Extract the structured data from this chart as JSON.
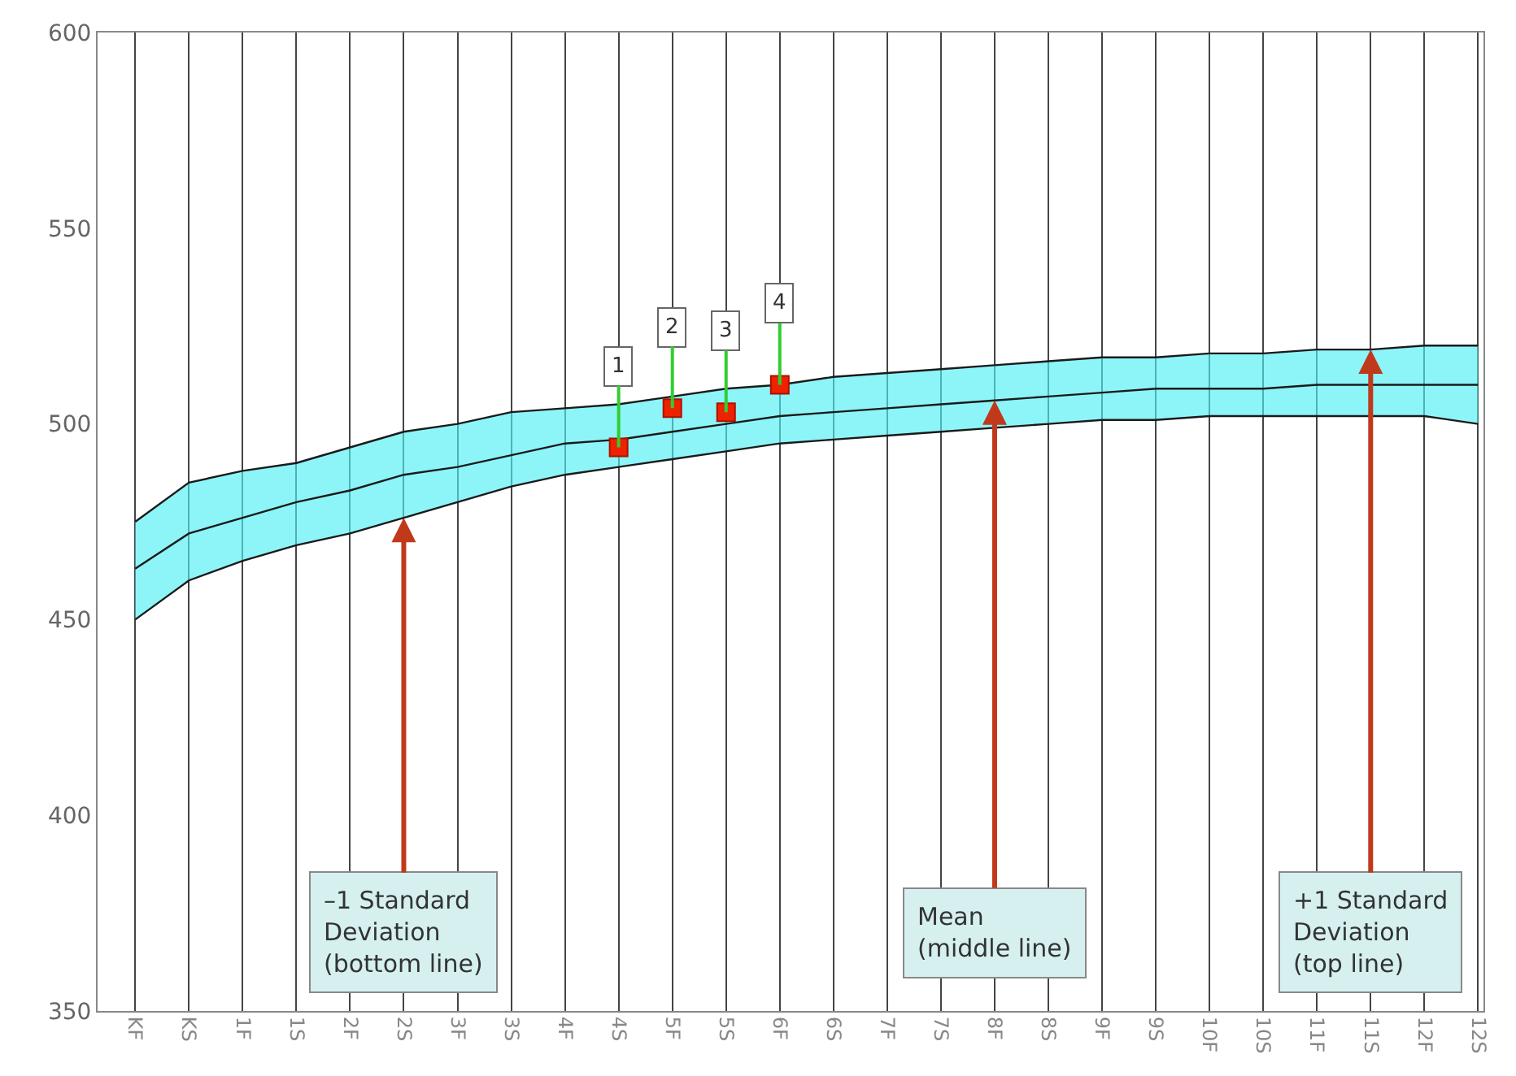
{
  "chart_data": {
    "type": "line",
    "categories": [
      "KF",
      "KS",
      "1F",
      "1S",
      "2F",
      "2S",
      "3F",
      "3S",
      "4F",
      "4S",
      "5F",
      "5S",
      "6F",
      "6S",
      "7F",
      "7S",
      "8F",
      "8S",
      "9F",
      "9S",
      "10F",
      "10S",
      "11F",
      "11S",
      "12F",
      "12S"
    ],
    "series": [
      {
        "color": "#1a1a1a",
        "values": [
          475,
          485,
          488,
          490,
          494,
          498,
          500,
          503,
          504,
          505,
          507,
          509,
          510,
          512,
          513,
          514,
          515,
          516,
          517,
          517,
          518,
          518,
          519,
          519,
          520,
          520
        ]
      },
      {
        "color": "#1a1a1a",
        "values": [
          463,
          472,
          476,
          480,
          483,
          487,
          489,
          492,
          495,
          496,
          498,
          500,
          502,
          503,
          504,
          505,
          506,
          507,
          508,
          509,
          509,
          509,
          510,
          510,
          510,
          510
        ],
        "lower": [
          450,
          460,
          465,
          469,
          472,
          476,
          480,
          484,
          487,
          489,
          491,
          493,
          495,
          496,
          497,
          498,
          499,
          500,
          501,
          501,
          502,
          502,
          502,
          502,
          502,
          500
        ],
        "upper": [
          475,
          485,
          488,
          490,
          494,
          498,
          500,
          503,
          504,
          505,
          507,
          509,
          510,
          512,
          513,
          514,
          515,
          516,
          517,
          517,
          518,
          518,
          519,
          519,
          520,
          520
        ]
      },
      {
        "color": "#1a1a1a",
        "values": [
          450,
          460,
          465,
          469,
          472,
          476,
          480,
          484,
          487,
          489,
          491,
          493,
          495,
          496,
          497,
          498,
          499,
          500,
          501,
          501,
          502,
          502,
          502,
          502,
          502,
          500
        ]
      },
      {
        "type": "scatter",
        "color": "#ee2200",
        "marker": "square",
        "x": [
          "4S",
          "5F",
          "5S",
          "6F"
        ],
        "values": [
          494,
          504,
          503,
          510
        ]
      }
    ],
    "ylim": [
      350,
      600
    ],
    "yticks": [
      350,
      400,
      450,
      500,
      550,
      600
    ],
    "grid": "x",
    "annotations": [
      {
        "text": "1",
        "x": "4S",
        "y": 494
      },
      {
        "text": "2",
        "x": "5F",
        "y": 504
      },
      {
        "text": "3",
        "x": "5S",
        "y": 503
      },
      {
        "text": "4",
        "x": "6F",
        "y": 510
      },
      {
        "text": "–1 Standard\nDeviation\n(bottom line)",
        "x": "2S",
        "y": 476
      },
      {
        "text": "Mean\n(middle line)",
        "x": "8F",
        "y": 506
      },
      {
        "text": "+1 Standard\nDeviation\n(top line)",
        "x": "11S",
        "y": 519
      }
    ]
  }
}
